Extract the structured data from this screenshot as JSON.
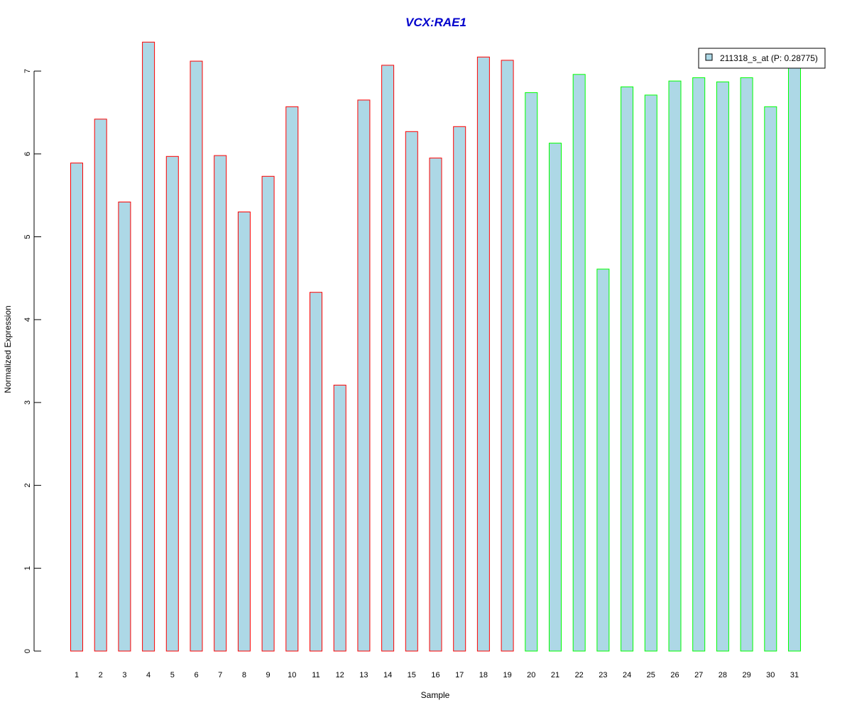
{
  "chart_data": {
    "type": "bar",
    "title": "VCX:RAE1",
    "xlabel": "Sample",
    "ylabel": "Normalized Expression",
    "categories": [
      "1",
      "2",
      "3",
      "4",
      "5",
      "6",
      "7",
      "8",
      "9",
      "10",
      "11",
      "12",
      "13",
      "14",
      "15",
      "16",
      "17",
      "18",
      "19",
      "20",
      "21",
      "22",
      "23",
      "24",
      "25",
      "26",
      "27",
      "28",
      "29",
      "30",
      "31"
    ],
    "series": [
      {
        "name": "211318_s_at (P: 0.28775)",
        "values": [
          5.89,
          6.42,
          5.42,
          7.35,
          5.97,
          7.12,
          5.98,
          5.3,
          5.73,
          6.57,
          4.33,
          3.21,
          6.65,
          7.07,
          6.27,
          5.95,
          6.33,
          7.17,
          7.13,
          6.74,
          6.13,
          6.96,
          4.61,
          6.81,
          6.71,
          6.88,
          6.92,
          6.87,
          6.92,
          6.57,
          7.06
        ]
      }
    ],
    "group_sizes": [
      19,
      12
    ],
    "ylim": [
      0,
      7.35
    ],
    "yticks": [
      0,
      1,
      2,
      3,
      4,
      5,
      6,
      7
    ],
    "grid": false,
    "legend_position": "top-right",
    "colors": {
      "title": "#0000cc",
      "bar_fill": "#add8e6",
      "group1_border": "#ff0000",
      "group2_border": "#00ff00",
      "axis": "#000000"
    }
  }
}
